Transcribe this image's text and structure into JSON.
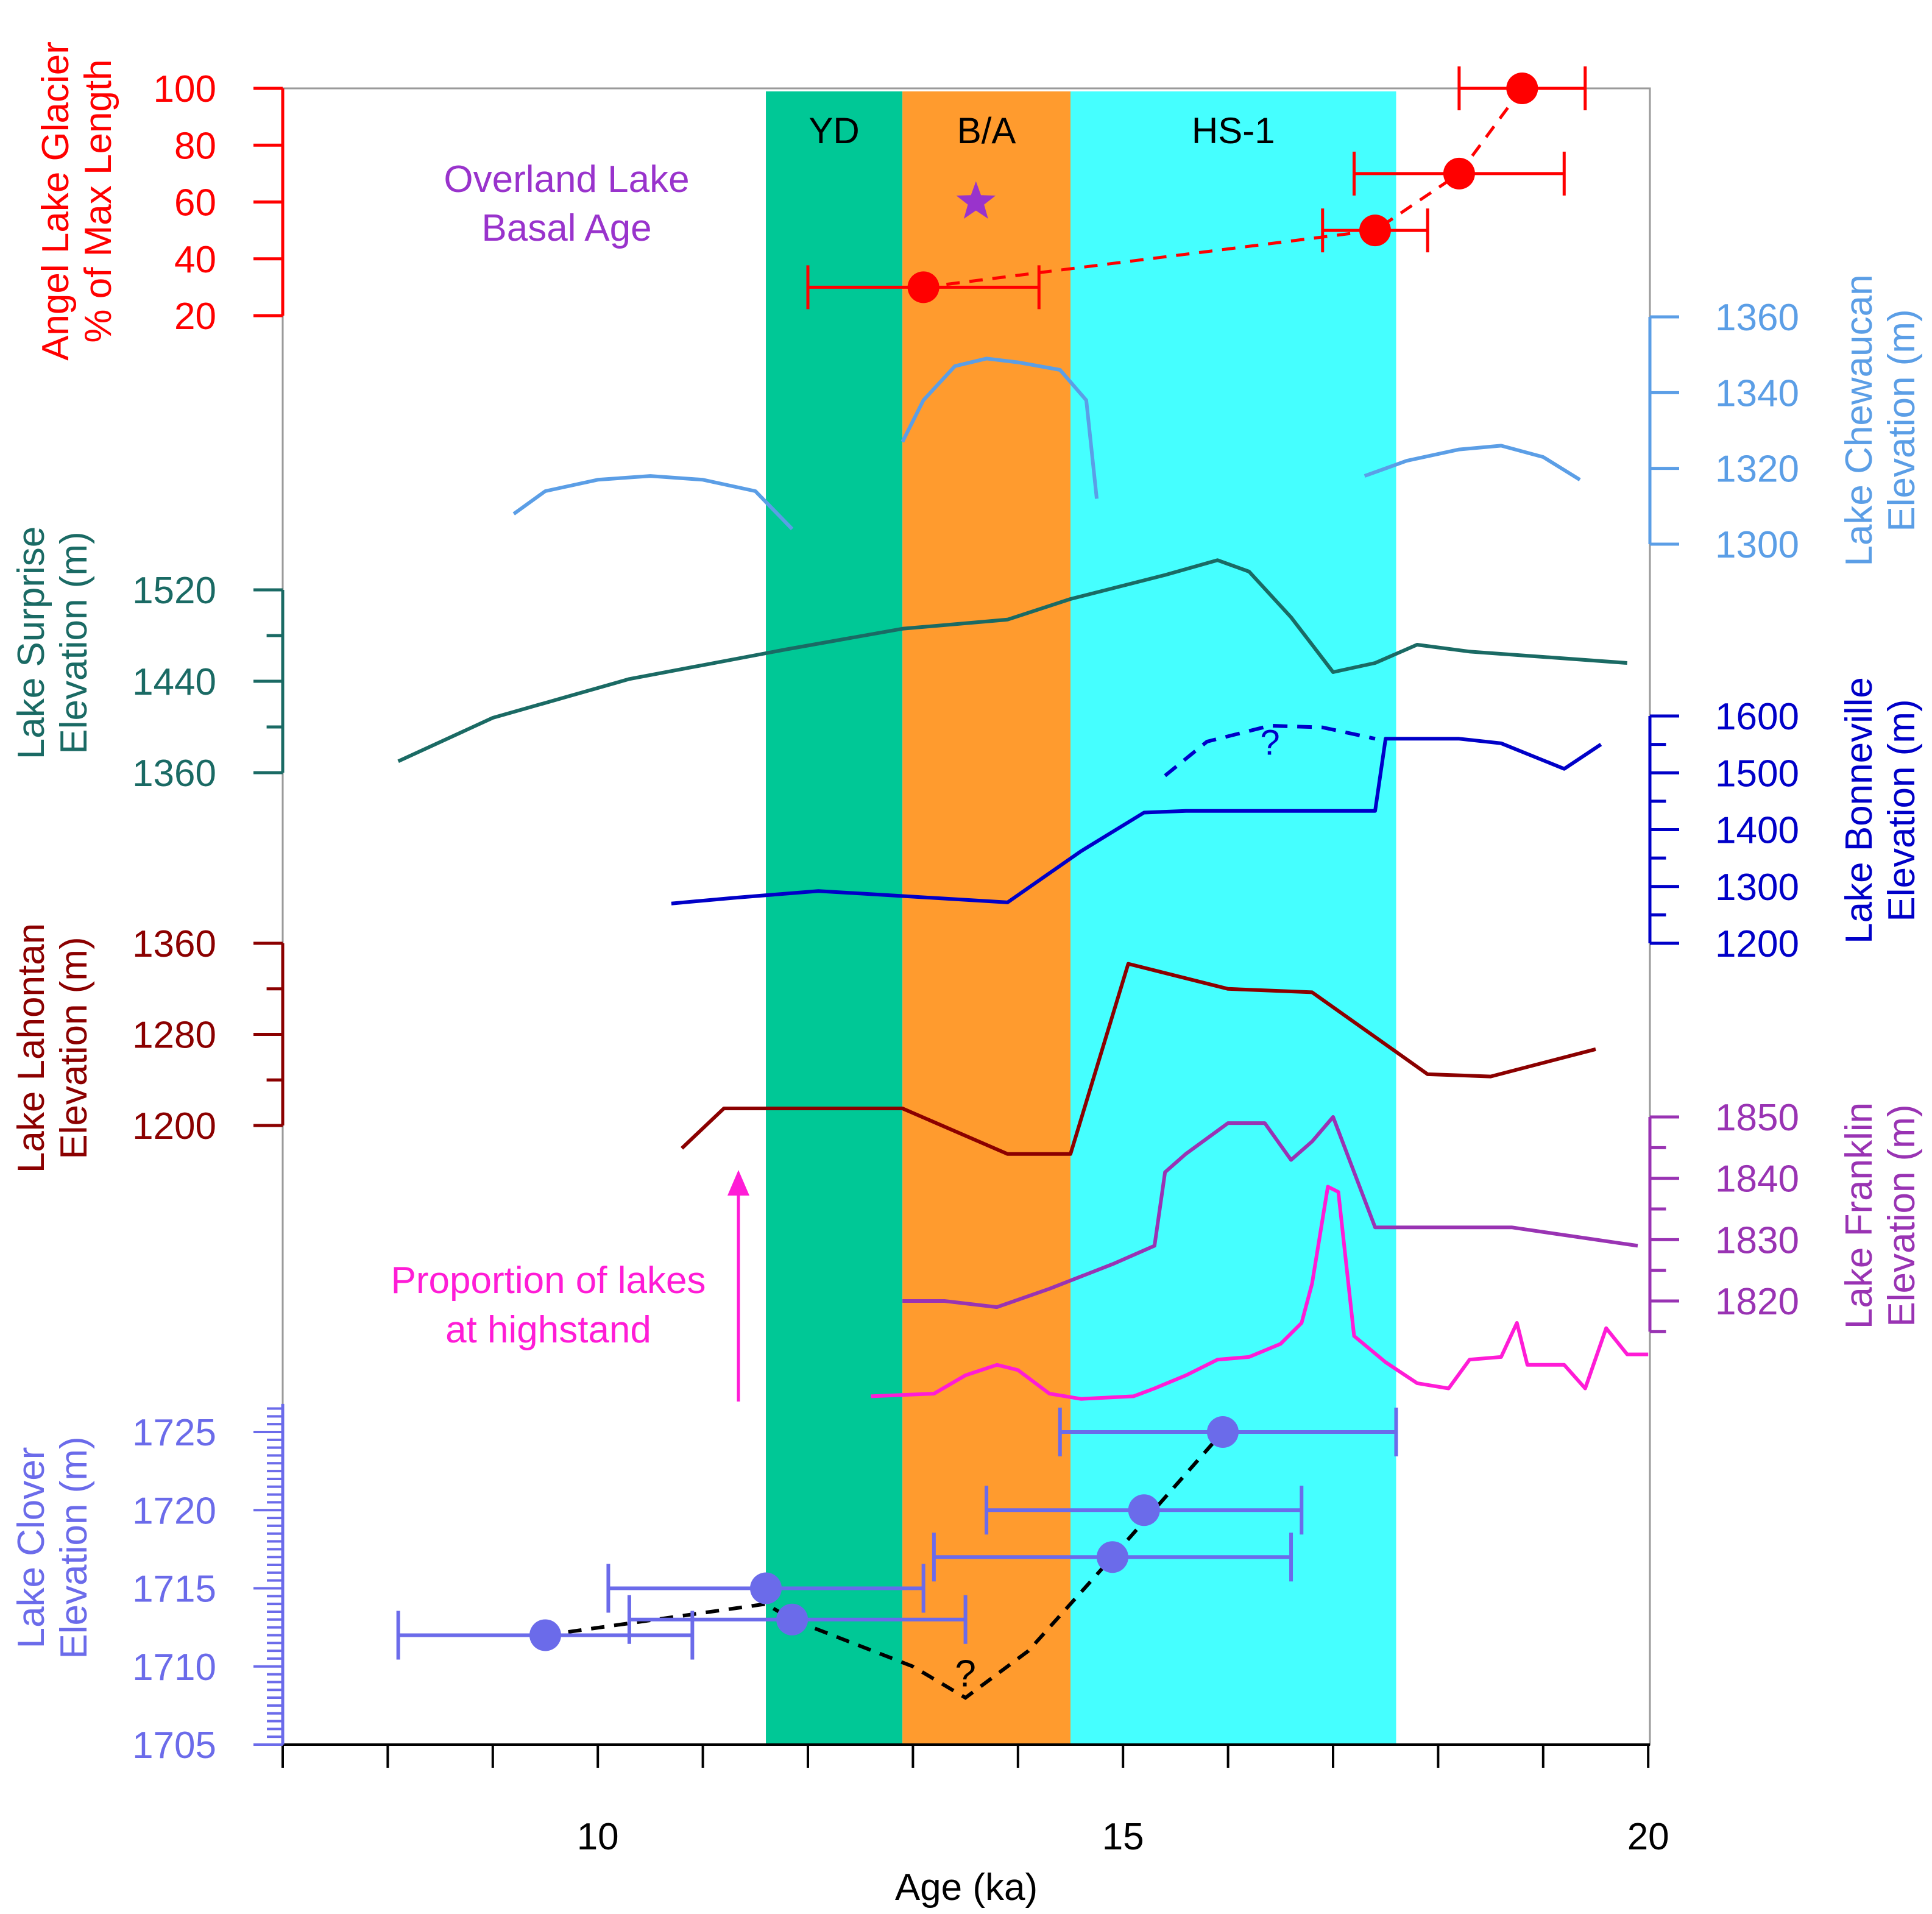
{
  "chart_data": {
    "type": "line",
    "xlabel": "Age (ka)",
    "xlim": [
      7,
      20
    ],
    "x_ticks": [
      10,
      15,
      20
    ],
    "x_tick_labels": [
      "10",
      "15",
      "20"
    ],
    "x_minor_step": 1,
    "bands": [
      {
        "label": "YD",
        "x0": 11.6,
        "x1": 12.9,
        "color": "#00c896"
      },
      {
        "label": "B/A",
        "x0": 12.9,
        "x1": 14.5,
        "color": "#ff9b2e"
      },
      {
        "label": "HS-1",
        "x0": 14.5,
        "x1": 17.6,
        "color": "#45ffff"
      }
    ],
    "colors": {
      "angel": "#ff0000",
      "chewaucan": "#5b9ee6",
      "surprise": "#1a6a64",
      "bonneville": "#0000c8",
      "lahontan": "#8b0000",
      "franklin": "#9933b3",
      "proportion": "#ff1cd6",
      "clover": "#6b6bea",
      "overland": "#9933cc",
      "dashed": "#000000"
    },
    "angel": {
      "axis_label_line1": "Angel Lake Glacier",
      "axis_label_line2": "% of Max Length",
      "ticks": [
        20,
        40,
        60,
        80,
        100
      ],
      "tick_labels": [
        "20",
        "40",
        "60",
        "80",
        "100"
      ],
      "points": [
        {
          "x": 13.1,
          "y": 30,
          "xerr_lo": 12.0,
          "xerr_hi": 14.2
        },
        {
          "x": 17.4,
          "y": 50,
          "xerr_lo": 16.9,
          "xerr_hi": 17.9
        },
        {
          "x": 18.2,
          "y": 70,
          "xerr_lo": 17.2,
          "xerr_hi": 19.2
        },
        {
          "x": 18.8,
          "y": 100,
          "xerr_lo": 18.2,
          "xerr_hi": 19.4
        }
      ]
    },
    "overland": {
      "label_line1": "Overland Lake",
      "label_line2": "Basal Age",
      "x": 13.6,
      "y": 60
    },
    "chewaucan": {
      "axis_label_line1": "Lake Chewaucan",
      "axis_label_line2": "Elevation (m)",
      "ticks": [
        1300,
        1320,
        1340,
        1360
      ],
      "tick_labels": [
        "1300",
        "1320",
        "1340",
        "1360"
      ],
      "segments": [
        [
          [
            9.2,
            1308
          ],
          [
            9.5,
            1314
          ],
          [
            10.0,
            1317
          ],
          [
            10.5,
            1318
          ],
          [
            11.0,
            1317
          ],
          [
            11.5,
            1314
          ],
          [
            11.85,
            1304
          ]
        ],
        [
          [
            12.9,
            1327
          ],
          [
            13.1,
            1338
          ],
          [
            13.4,
            1347
          ],
          [
            13.7,
            1349
          ],
          [
            14.0,
            1348
          ],
          [
            14.4,
            1346
          ],
          [
            14.65,
            1338
          ],
          [
            14.75,
            1312
          ]
        ],
        [
          [
            17.3,
            1318
          ],
          [
            17.7,
            1322
          ],
          [
            18.2,
            1325
          ],
          [
            18.6,
            1326
          ],
          [
            19.0,
            1323
          ],
          [
            19.35,
            1317
          ]
        ]
      ]
    },
    "surprise": {
      "axis_label_line1": "Lake Surprise",
      "axis_label_line2": "Elevation (m)",
      "ticks": [
        1360,
        1400,
        1440,
        1480,
        1520
      ],
      "tick_labels": [
        "1360",
        "1440",
        "1520"
      ],
      "points": [
        [
          8.1,
          1370
        ],
        [
          9.0,
          1408
        ],
        [
          10.3,
          1442
        ],
        [
          11.8,
          1468
        ],
        [
          12.9,
          1486
        ],
        [
          13.9,
          1494
        ],
        [
          14.5,
          1512
        ],
        [
          15.4,
          1533
        ],
        [
          15.9,
          1546
        ],
        [
          16.2,
          1536
        ],
        [
          16.6,
          1496
        ],
        [
          17.0,
          1448
        ],
        [
          17.4,
          1456
        ],
        [
          17.8,
          1472
        ],
        [
          18.3,
          1466
        ],
        [
          19.8,
          1456
        ]
      ]
    },
    "bonneville": {
      "axis_label_line1": "Lake Bonneville",
      "axis_label_line2": "Elevation (m)",
      "ticks": [
        1200,
        1250,
        1300,
        1350,
        1400,
        1450,
        1500,
        1550,
        1600
      ],
      "tick_labels": [
        "1200",
        "1300",
        "1400",
        "1500",
        "1600"
      ],
      "points": [
        [
          10.7,
          1270
        ],
        [
          11.3,
          1280
        ],
        [
          12.1,
          1292
        ],
        [
          13.0,
          1282
        ],
        [
          13.9,
          1272
        ],
        [
          14.6,
          1362
        ],
        [
          15.2,
          1430
        ],
        [
          15.6,
          1433
        ],
        [
          17.4,
          1433
        ],
        [
          17.5,
          1560
        ],
        [
          18.2,
          1560
        ],
        [
          18.6,
          1552
        ],
        [
          19.2,
          1507
        ],
        [
          19.55,
          1550
        ]
      ],
      "dashed": [
        [
          15.4,
          1495
        ],
        [
          15.8,
          1555
        ],
        [
          16.4,
          1583
        ],
        [
          16.9,
          1580
        ],
        [
          17.4,
          1560
        ]
      ],
      "question": "?",
      "question_at": [
        16.4,
        1532
      ]
    },
    "lahontan": {
      "axis_label_line1": "Lake Lahontan",
      "axis_label_line2": "Elevation (m)",
      "ticks": [
        1200,
        1240,
        1280,
        1320,
        1360
      ],
      "tick_labels": [
        "1200",
        "1280",
        "1360"
      ],
      "points": [
        [
          10.8,
          1180
        ],
        [
          11.2,
          1215
        ],
        [
          12.9,
          1215
        ],
        [
          13.9,
          1175
        ],
        [
          14.5,
          1175
        ],
        [
          15.05,
          1342
        ],
        [
          16.0,
          1320
        ],
        [
          16.8,
          1317
        ],
        [
          17.9,
          1245
        ],
        [
          18.5,
          1243
        ],
        [
          19.5,
          1267
        ]
      ]
    },
    "franklin": {
      "axis_label_line1": "Lake Franklin",
      "axis_label_line2": "Elevation (m)",
      "ticks": [
        1815,
        1820,
        1825,
        1830,
        1835,
        1840,
        1845,
        1850
      ],
      "tick_labels": [
        "1820",
        "1830",
        "1840",
        "1850"
      ],
      "points": [
        [
          12.9,
          1820
        ],
        [
          13.3,
          1820
        ],
        [
          13.8,
          1819
        ],
        [
          14.3,
          1822
        ],
        [
          14.9,
          1826
        ],
        [
          15.3,
          1829
        ],
        [
          15.4,
          1841
        ],
        [
          15.6,
          1844
        ],
        [
          16.0,
          1849
        ],
        [
          16.35,
          1849
        ],
        [
          16.6,
          1843
        ],
        [
          16.8,
          1846
        ],
        [
          17.0,
          1850
        ],
        [
          17.4,
          1832
        ],
        [
          17.8,
          1832
        ],
        [
          18.7,
          1832
        ],
        [
          19.9,
          1829
        ]
      ]
    },
    "proportion": {
      "label_line1": "Proportion of lakes",
      "label_line2": "at highstand",
      "points": [
        [
          12.6,
          0.02
        ],
        [
          13.2,
          0.03
        ],
        [
          13.5,
          0.1
        ],
        [
          13.8,
          0.14
        ],
        [
          14.0,
          0.12
        ],
        [
          14.3,
          0.03
        ],
        [
          14.6,
          0.01
        ],
        [
          15.1,
          0.02
        ],
        [
          15.3,
          0.05
        ],
        [
          15.6,
          0.1
        ],
        [
          15.9,
          0.16
        ],
        [
          16.2,
          0.17
        ],
        [
          16.5,
          0.22
        ],
        [
          16.7,
          0.3
        ],
        [
          16.8,
          0.45
        ],
        [
          16.95,
          0.82
        ],
        [
          17.05,
          0.8
        ],
        [
          17.2,
          0.25
        ],
        [
          17.5,
          0.15
        ],
        [
          17.8,
          0.07
        ],
        [
          18.1,
          0.05
        ],
        [
          18.3,
          0.16
        ],
        [
          18.6,
          0.17
        ],
        [
          18.75,
          0.3
        ],
        [
          18.85,
          0.14
        ],
        [
          19.2,
          0.14
        ],
        [
          19.4,
          0.05
        ],
        [
          19.6,
          0.28
        ],
        [
          19.8,
          0.18
        ],
        [
          20.0,
          0.18
        ]
      ]
    },
    "clover": {
      "axis_label_line1": "Lake Clover",
      "axis_label_line2": "Elevation (m)",
      "ylim": [
        1705,
        1727
      ],
      "ticks": [
        1705,
        1710,
        1715,
        1720,
        1725
      ],
      "tick_labels": [
        "1705",
        "1710",
        "1715",
        "1720",
        "1725"
      ],
      "minor_step": 0.5,
      "points": [
        {
          "x": 9.5,
          "y": 1712,
          "xerr_lo": 8.1,
          "xerr_hi": 10.9
        },
        {
          "x": 11.6,
          "y": 1715,
          "xerr_lo": 10.1,
          "xerr_hi": 13.1
        },
        {
          "x": 11.85,
          "y": 1713,
          "xerr_lo": 10.3,
          "xerr_hi": 13.5
        },
        {
          "x": 14.9,
          "y": 1717,
          "xerr_lo": 13.2,
          "xerr_hi": 16.6
        },
        {
          "x": 15.2,
          "y": 1720,
          "xerr_lo": 13.7,
          "xerr_hi": 16.7
        },
        {
          "x": 15.95,
          "y": 1725,
          "xerr_lo": 14.4,
          "xerr_hi": 17.6
        }
      ],
      "dashed": [
        [
          9.5,
          1712
        ],
        [
          11.6,
          1714
        ],
        [
          11.85,
          1713
        ],
        [
          13.0,
          1710
        ],
        [
          13.5,
          1708
        ],
        [
          14.1,
          1711
        ],
        [
          14.9,
          1717
        ],
        [
          15.95,
          1725
        ]
      ],
      "question": "?",
      "question_at": [
        13.5,
        1709.5
      ]
    }
  }
}
